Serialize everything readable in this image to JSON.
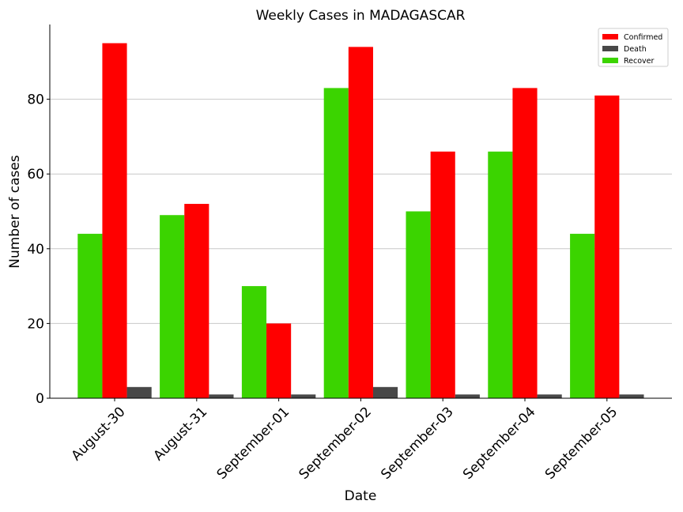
{
  "chart_data": {
    "type": "bar",
    "title": "Weekly Cases in MADAGASCAR",
    "xlabel": "Date",
    "ylabel": "Number of cases",
    "categories": [
      "August-30",
      "August-31",
      "September-01",
      "September-02",
      "September-03",
      "September-04",
      "September-05"
    ],
    "series": [
      {
        "name": "Recover",
        "color": "#3bd400",
        "values": [
          44,
          49,
          30,
          83,
          50,
          66,
          44
        ]
      },
      {
        "name": "Confirmed",
        "color": "#ff0000",
        "values": [
          95,
          52,
          20,
          94,
          66,
          83,
          81
        ]
      },
      {
        "name": "Death",
        "color": "#484848",
        "values": [
          3,
          1,
          1,
          3,
          1,
          1,
          1
        ]
      }
    ],
    "legend_order": [
      "Confirmed",
      "Death",
      "Recover"
    ],
    "ylim": [
      0,
      100
    ],
    "yticks": [
      0,
      20,
      40,
      60,
      80
    ],
    "grid": "horizontal",
    "legend_position": "top-right"
  }
}
